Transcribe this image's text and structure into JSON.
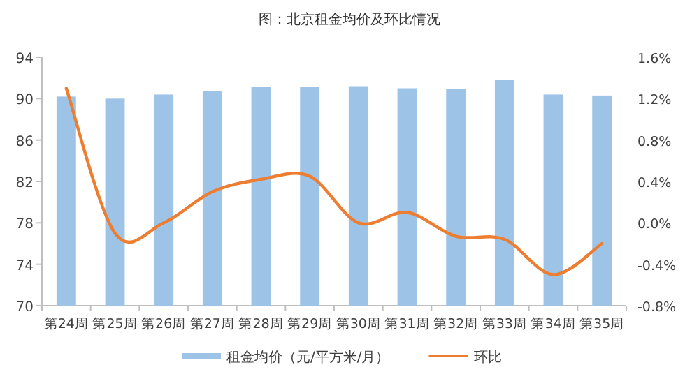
{
  "chart_data": {
    "type": "bar",
    "title": "图：北京租金均价及环比情况",
    "categories": [
      "第24周",
      "第25周",
      "第26周",
      "第27周",
      "第28周",
      "第29周",
      "第30周",
      "第31周",
      "第32周",
      "第33周",
      "第34周",
      "第35周"
    ],
    "series": [
      {
        "name": "租金均价（元/平方米/月）",
        "color": "#9dc3e6",
        "values": [
          90.2,
          90.0,
          90.4,
          90.7,
          91.1,
          91.1,
          91.2,
          91.0,
          90.9,
          91.8,
          90.4,
          90.3
        ]
      },
      {
        "name": "环比",
        "type": "line",
        "axis": "y2",
        "color": "#ed7d31",
        "values": [
          1.3,
          -0.1,
          0.0,
          0.3,
          0.42,
          0.45,
          0.0,
          0.1,
          -0.13,
          -0.16,
          -0.5,
          -0.2
        ]
      }
    ],
    "ylim": [
      70,
      94
    ],
    "yticks": [
      70,
      74,
      78,
      82,
      86,
      90,
      94
    ],
    "y2lim": [
      -0.8,
      1.6
    ],
    "y2ticks": [
      {
        "value": -0.8,
        "label": "-0.8%"
      },
      {
        "value": -0.4,
        "label": "-0.4%"
      },
      {
        "value": 0,
        "label": "0.0%"
      },
      {
        "value": 0.4,
        "label": "0.4%"
      },
      {
        "value": 0.8,
        "label": "0.8%"
      },
      {
        "value": 1.2,
        "label": "1.2%"
      },
      {
        "value": 1.6,
        "label": "1.6%"
      }
    ],
    "legend": "bottom",
    "marker": "none"
  }
}
